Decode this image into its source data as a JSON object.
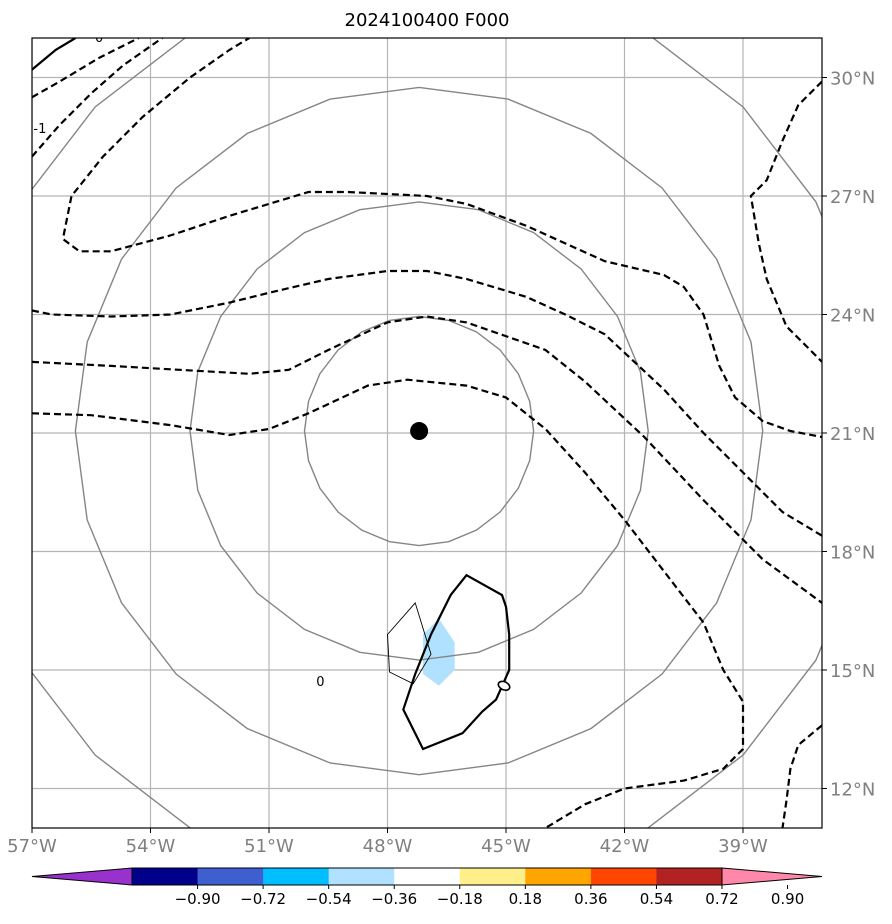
{
  "chart_data": {
    "type": "map-contour",
    "title": "2024100400 F000",
    "lon_range": [
      -57,
      -37
    ],
    "lat_range": [
      11,
      31
    ],
    "lat_ticks": [
      {
        "value": 12,
        "label": "12°N"
      },
      {
        "value": 15,
        "label": "15°N"
      },
      {
        "value": 18,
        "label": "18°N"
      },
      {
        "value": 21,
        "label": "21°N"
      },
      {
        "value": 24,
        "label": "24°N"
      },
      {
        "value": 27,
        "label": "27°N"
      },
      {
        "value": 30,
        "label": "30°N"
      }
    ],
    "lon_ticks": [
      {
        "value": -57,
        "label": "57°W"
      },
      {
        "value": -54,
        "label": "54°W"
      },
      {
        "value": -51,
        "label": "51°W"
      },
      {
        "value": -48,
        "label": "48°W"
      },
      {
        "value": -45,
        "label": "45°W"
      },
      {
        "value": -42,
        "label": "42°W"
      },
      {
        "value": -39,
        "label": "39°W"
      }
    ],
    "grid": true,
    "center": {
      "lon": -47.2,
      "lat": 21.05
    },
    "range_rings_deg": [
      2.9,
      5.8,
      8.7,
      11.6
    ],
    "contour_labels": [
      {
        "text": "0",
        "lon": -49.7,
        "lat": 14.6
      },
      {
        "text": "0",
        "lon": -55.3,
        "lat": 30.9
      },
      {
        "text": "-1",
        "lon": -56.8,
        "lat": 28.6
      }
    ],
    "colorbar": {
      "colors": [
        "#9932CC",
        "#00008B",
        "#3F5FD0",
        "#00BFFF",
        "#B0E2FF",
        "#FFFFFF",
        "#FFEF8A",
        "#FFA500",
        "#FF4500",
        "#B22222",
        "#FF88AA"
      ],
      "tick_labels": [
        "−0.90",
        "−0.72",
        "−0.54",
        "−0.36",
        "−0.18",
        "0.18",
        "0.36",
        "0.54",
        "0.72",
        "0.90"
      ]
    }
  }
}
